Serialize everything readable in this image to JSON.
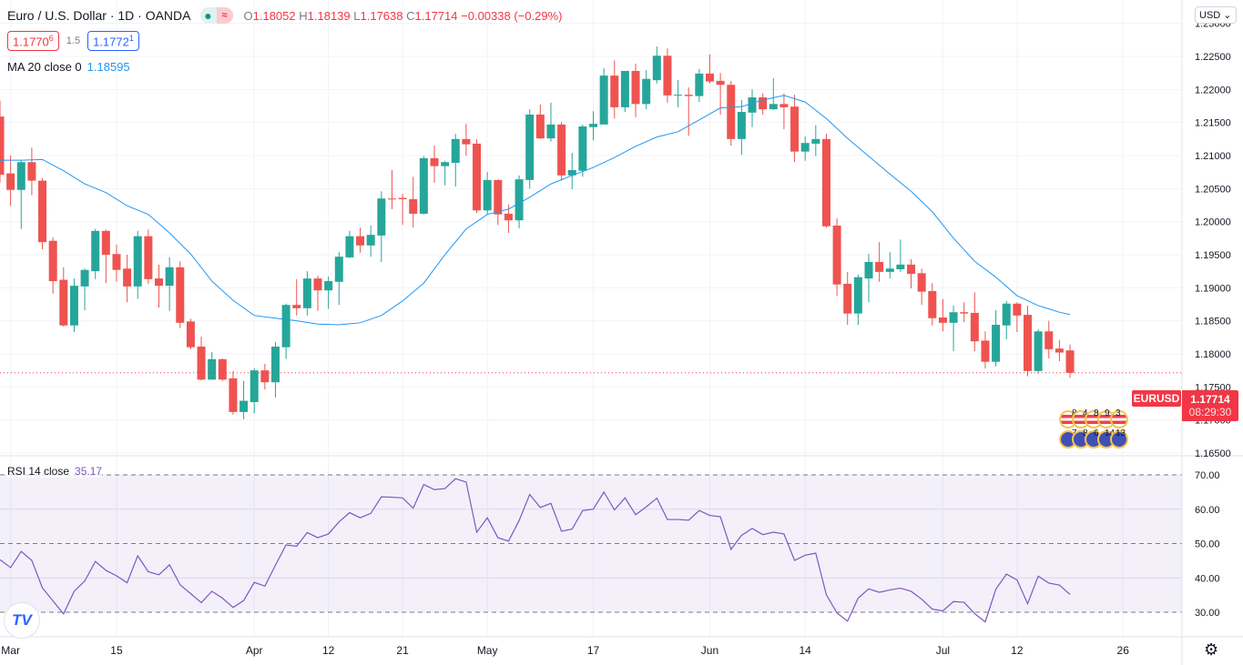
{
  "header": {
    "title": "Euro / U.S. Dollar · 1D · OANDA",
    "status_market_icon": "green-dot-icon",
    "status_delay_icon": "approx-icon",
    "ohlc": {
      "o_label": "O",
      "o": "1.18052",
      "h_label": "H",
      "h": "1.18139",
      "l_label": "L",
      "l": "1.17638",
      "c_label": "C",
      "c": "1.17714",
      "change": "−0.00338 (−0.29%)"
    },
    "sell": {
      "main": "1.1770",
      "pip": "6"
    },
    "spread": "1.5",
    "buy": {
      "main": "1.1772",
      "pip": "1"
    }
  },
  "ma_legend": {
    "label": "MA 20 close 0",
    "value": "1.18595"
  },
  "rsi_legend": {
    "label": "RSI 14 close",
    "value": "35.17"
  },
  "currency_button": "USD ⌄",
  "symbol_label": "EURUSD",
  "last_price": "1.17714",
  "countdown": "08:29:30",
  "events": {
    "us": [
      "8",
      "4",
      "8",
      "9",
      "3"
    ],
    "eu": [
      "7",
      "8",
      "6",
      "14",
      "13"
    ]
  },
  "settings_icon": "gear-icon",
  "logo": "TV",
  "colors": {
    "up": "#26a69a",
    "down": "#ef5350",
    "ma": "#2196f3",
    "rsi": "#7e57c2",
    "last_price": "#f23645"
  },
  "chart_data": {
    "type": "candlestick",
    "symbol": "EURUSD",
    "interval": "1D",
    "x_ticks": [
      "Mar",
      "15",
      "Apr",
      "12",
      "21",
      "May",
      "17",
      "Jun",
      "14",
      "Jul",
      "12",
      "26"
    ],
    "price_ticks": [
      "1.23000",
      "1.22500",
      "1.22000",
      "1.21500",
      "1.21000",
      "1.20500",
      "1.20000",
      "1.19500",
      "1.19000",
      "1.18500",
      "1.18000",
      "1.17500",
      "1.17000",
      "1.16500"
    ],
    "price_range": [
      1.165,
      1.23
    ],
    "grid": true,
    "candles_ohlc": [
      [
        1.2159,
        1.2183,
        1.2059,
        1.2071
      ],
      [
        1.2073,
        1.21,
        1.2024,
        1.2048
      ],
      [
        1.2048,
        1.2093,
        1.1989,
        1.209
      ],
      [
        1.209,
        1.2112,
        1.204,
        1.2062
      ],
      [
        1.2062,
        1.2066,
        1.1958,
        1.1969
      ],
      [
        1.1971,
        1.1976,
        1.1891,
        1.191
      ],
      [
        1.1912,
        1.1931,
        1.1841,
        1.1843
      ],
      [
        1.1843,
        1.1914,
        1.1833,
        1.1903
      ],
      [
        1.1902,
        1.1929,
        1.1866,
        1.1927
      ],
      [
        1.1925,
        1.1989,
        1.1913,
        1.1986
      ],
      [
        1.1986,
        1.1988,
        1.1907,
        1.195
      ],
      [
        1.1951,
        1.1965,
        1.1909,
        1.1927
      ],
      [
        1.1929,
        1.195,
        1.1878,
        1.1902
      ],
      [
        1.1902,
        1.1986,
        1.1883,
        1.1978
      ],
      [
        1.1978,
        1.1988,
        1.1906,
        1.1913
      ],
      [
        1.1914,
        1.1935,
        1.187,
        1.1903
      ],
      [
        1.1903,
        1.1946,
        1.1865,
        1.1931
      ],
      [
        1.1931,
        1.194,
        1.1839,
        1.1847
      ],
      [
        1.1849,
        1.1853,
        1.1807,
        1.181
      ],
      [
        1.1811,
        1.1826,
        1.176,
        1.1761
      ],
      [
        1.1761,
        1.1803,
        1.1761,
        1.1792
      ],
      [
        1.1792,
        1.1793,
        1.1759,
        1.1761
      ],
      [
        1.1763,
        1.1774,
        1.1708,
        1.1712
      ],
      [
        1.1712,
        1.1759,
        1.1701,
        1.1729
      ],
      [
        1.1727,
        1.1778,
        1.171,
        1.1775
      ],
      [
        1.1775,
        1.1785,
        1.1746,
        1.1757
      ],
      [
        1.1757,
        1.1818,
        1.1734,
        1.1811
      ],
      [
        1.181,
        1.1876,
        1.1792,
        1.1874
      ],
      [
        1.1874,
        1.1913,
        1.1858,
        1.1869
      ],
      [
        1.1869,
        1.1925,
        1.1858,
        1.1914
      ],
      [
        1.1914,
        1.1918,
        1.1865,
        1.1896
      ],
      [
        1.1896,
        1.1917,
        1.1868,
        1.191
      ],
      [
        1.1909,
        1.1954,
        1.1874,
        1.1947
      ],
      [
        1.1946,
        1.1986,
        1.1945,
        1.1978
      ],
      [
        1.1978,
        1.1991,
        1.1953,
        1.1964
      ],
      [
        1.1964,
        1.1994,
        1.1947,
        1.198
      ],
      [
        1.1979,
        1.2046,
        1.1939,
        1.2035
      ],
      [
        1.2035,
        1.2078,
        1.2019,
        1.2034
      ],
      [
        1.2036,
        1.2042,
        1.1995,
        1.2034
      ],
      [
        1.2034,
        1.2068,
        1.1991,
        1.2012
      ],
      [
        1.2012,
        1.2099,
        1.2011,
        1.2096
      ],
      [
        1.2096,
        1.2115,
        1.2059,
        1.2084
      ],
      [
        1.2084,
        1.2092,
        1.2055,
        1.209
      ],
      [
        1.2089,
        1.2133,
        1.2053,
        1.2125
      ],
      [
        1.2125,
        1.2148,
        1.21,
        1.2117
      ],
      [
        1.2118,
        1.2125,
        1.2013,
        1.2017
      ],
      [
        1.2017,
        1.2075,
        1.2011,
        1.2063
      ],
      [
        1.2063,
        1.2064,
        1.1995,
        1.2011
      ],
      [
        1.2012,
        1.2026,
        1.1983,
        1.2002
      ],
      [
        1.2002,
        1.207,
        1.199,
        1.2064
      ],
      [
        1.2063,
        1.217,
        1.205,
        1.2162
      ],
      [
        1.2162,
        1.2177,
        1.2125,
        1.2126
      ],
      [
        1.2126,
        1.218,
        1.2121,
        1.2147
      ],
      [
        1.2147,
        1.2151,
        1.2062,
        1.207
      ],
      [
        1.207,
        1.2104,
        1.2049,
        1.2078
      ],
      [
        1.2077,
        1.2147,
        1.2068,
        1.2144
      ],
      [
        1.2143,
        1.2167,
        1.2123,
        1.2148
      ],
      [
        1.2147,
        1.2232,
        1.2147,
        1.2221
      ],
      [
        1.2221,
        1.2244,
        1.2156,
        1.2173
      ],
      [
        1.2173,
        1.2228,
        1.2166,
        1.2228
      ],
      [
        1.2228,
        1.2239,
        1.2158,
        1.2178
      ],
      [
        1.2178,
        1.2229,
        1.217,
        1.2216
      ],
      [
        1.2214,
        1.2265,
        1.2209,
        1.2251
      ],
      [
        1.2251,
        1.2262,
        1.218,
        1.2191
      ],
      [
        1.2192,
        1.2214,
        1.2173,
        1.2192
      ],
      [
        1.2192,
        1.2203,
        1.213,
        1.219
      ],
      [
        1.219,
        1.2231,
        1.2181,
        1.2224
      ],
      [
        1.2224,
        1.2253,
        1.2209,
        1.2212
      ],
      [
        1.2213,
        1.2225,
        1.2162,
        1.2207
      ],
      [
        1.2207,
        1.2213,
        1.2115,
        1.2125
      ],
      [
        1.2125,
        1.2184,
        1.2101,
        1.2166
      ],
      [
        1.2165,
        1.22,
        1.2143,
        1.2188
      ],
      [
        1.2188,
        1.2194,
        1.2162,
        1.217
      ],
      [
        1.217,
        1.2217,
        1.2169,
        1.2178
      ],
      [
        1.2178,
        1.2194,
        1.214,
        1.2173
      ],
      [
        1.2174,
        1.2192,
        1.209,
        1.2106
      ],
      [
        1.2106,
        1.2129,
        1.2092,
        1.2119
      ],
      [
        1.2118,
        1.2146,
        1.2099,
        1.2125
      ],
      [
        1.2125,
        1.2133,
        1.1991,
        1.1993
      ],
      [
        1.1994,
        1.2005,
        1.1888,
        1.1905
      ],
      [
        1.1906,
        1.1924,
        1.1844,
        1.1861
      ],
      [
        1.1861,
        1.192,
        1.1844,
        1.1916
      ],
      [
        1.1914,
        1.1951,
        1.1878,
        1.1939
      ],
      [
        1.1939,
        1.1969,
        1.1909,
        1.1924
      ],
      [
        1.1924,
        1.1954,
        1.1914,
        1.1929
      ],
      [
        1.1928,
        1.1973,
        1.1924,
        1.1935
      ],
      [
        1.1935,
        1.1943,
        1.1899,
        1.1921
      ],
      [
        1.1922,
        1.1929,
        1.1874,
        1.1894
      ],
      [
        1.1895,
        1.1907,
        1.1843,
        1.1854
      ],
      [
        1.1855,
        1.1883,
        1.1834,
        1.1847
      ],
      [
        1.1847,
        1.1873,
        1.1804,
        1.1863
      ],
      [
        1.1863,
        1.1878,
        1.1848,
        1.1861
      ],
      [
        1.1862,
        1.1893,
        1.1804,
        1.1819
      ],
      [
        1.182,
        1.1834,
        1.1778,
        1.1788
      ],
      [
        1.1788,
        1.1866,
        1.1781,
        1.1844
      ],
      [
        1.1843,
        1.188,
        1.1822,
        1.1876
      ],
      [
        1.1876,
        1.1878,
        1.1833,
        1.1858
      ],
      [
        1.1859,
        1.1873,
        1.1766,
        1.1774
      ],
      [
        1.1774,
        1.1837,
        1.177,
        1.1834
      ],
      [
        1.1834,
        1.185,
        1.1793,
        1.1807
      ],
      [
        1.1808,
        1.1821,
        1.1789,
        1.1802
      ],
      [
        1.18052,
        1.18139,
        1.17638,
        1.17714
      ]
    ],
    "ma20": [
      1.2093,
      1.2093,
      1.2094,
      1.2077,
      1.2057,
      1.2044,
      1.2024,
      1.2011,
      1.1983,
      1.1951,
      1.191,
      1.1881,
      1.1858,
      1.1854,
      1.185,
      1.1845,
      1.1844,
      1.1847,
      1.1858,
      1.188,
      1.1907,
      1.195,
      1.1989,
      1.2011,
      1.2019,
      1.2037,
      1.2057,
      1.207,
      1.2082,
      1.2097,
      1.2114,
      1.2128,
      1.2136,
      1.2154,
      1.2172,
      1.2174,
      1.2184,
      1.2191,
      1.2181,
      1.2156,
      1.2126,
      1.2099,
      1.2072,
      1.2046,
      1.2015,
      1.1975,
      1.194,
      1.1916,
      1.1888,
      1.1873,
      1.1863,
      1.18595
    ],
    "rsi": {
      "ticks": [
        "70.00",
        "60.00",
        "50.00",
        "40.00",
        "30.00"
      ],
      "range": [
        30,
        70
      ],
      "values": [
        45.3,
        43.0,
        47.7,
        45.1,
        37.1,
        33.3,
        29.5,
        36.1,
        39.1,
        44.8,
        42.2,
        40.6,
        38.6,
        46.4,
        41.8,
        40.9,
        43.8,
        38.0,
        35.4,
        32.8,
        36.1,
        34.1,
        31.4,
        33.4,
        38.7,
        37.6,
        43.7,
        49.6,
        49.2,
        53.2,
        51.7,
        52.8,
        56.3,
        59.0,
        57.5,
        58.8,
        63.6,
        63.5,
        63.3,
        60.3,
        67.2,
        65.7,
        66.0,
        68.9,
        67.9,
        53.3,
        57.5,
        51.7,
        50.7,
        56.7,
        64.3,
        60.5,
        61.7,
        53.6,
        54.2,
        59.6,
        60.0,
        65.0,
        59.8,
        63.3,
        58.4,
        60.7,
        63.2,
        57.0,
        57.0,
        56.8,
        59.6,
        58.2,
        57.8,
        48.3,
        52.4,
        54.4,
        52.6,
        53.3,
        52.8,
        45.1,
        46.6,
        47.2,
        35.1,
        29.8,
        27.4,
        34.1,
        36.8,
        35.8,
        36.5,
        37.0,
        36.1,
        33.8,
        30.9,
        30.4,
        33.1,
        32.9,
        29.6,
        27.2,
        36.7,
        41.1,
        39.4,
        32.5,
        40.5,
        38.5,
        37.9,
        35.17
      ]
    }
  }
}
